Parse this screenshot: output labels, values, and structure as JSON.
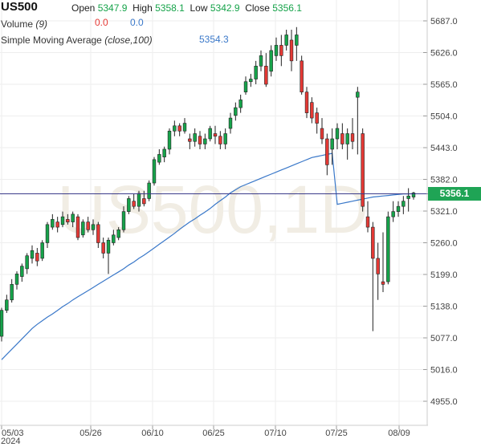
{
  "header": {
    "symbol": "US500",
    "open_label": "Open",
    "open": "5347.9",
    "high_label": "High",
    "high": "5358.1",
    "low_label": "Low",
    "low": "5342.9",
    "close_label": "Close",
    "close": "5356.1",
    "volume_label": "Volume",
    "volume_param": "(9)",
    "volume_val1": "0.0",
    "volume_val2": "0.0",
    "sma_label": "Simple Moving Average",
    "sma_param": "(close,100)",
    "sma_value": "5354.3"
  },
  "watermark": "US500,1D",
  "last_price_tag": "5356.1",
  "colors": {
    "up": "#16a34a",
    "down": "#e53935",
    "sma": "#3a78c9",
    "price_line": "#3b3b8a",
    "tag": "#1fa455"
  },
  "chart_data": {
    "type": "candlestick",
    "y_ticks": [
      "5687.0",
      "5626.0",
      "5565.0",
      "5504.0",
      "5443.0",
      "5382.0",
      "5321.0",
      "5260.0",
      "5199.0",
      "5138.0",
      "5077.0",
      "5016.0",
      "4955.0"
    ],
    "x_ticks": [
      "05/03",
      "05/26",
      "06/10",
      "06/25",
      "07/10",
      "07/25",
      "08/09"
    ],
    "x_sub": "2024",
    "ylim": [
      4935,
      5700
    ],
    "last_price": 5356.1,
    "candles": [
      [
        5080,
        5130,
        5070,
        5135
      ],
      [
        5130,
        5150,
        5125,
        5160
      ],
      [
        5150,
        5180,
        5145,
        5190
      ],
      [
        5180,
        5200,
        5170,
        5205
      ],
      [
        5195,
        5215,
        5185,
        5220
      ],
      [
        5210,
        5235,
        5200,
        5240
      ],
      [
        5230,
        5245,
        5220,
        5255
      ],
      [
        5240,
        5225,
        5215,
        5250
      ],
      [
        5230,
        5260,
        5225,
        5265
      ],
      [
        5260,
        5295,
        5250,
        5300
      ],
      [
        5290,
        5305,
        5285,
        5315
      ],
      [
        5300,
        5290,
        5280,
        5310
      ],
      [
        5295,
        5310,
        5290,
        5320
      ],
      [
        5305,
        5300,
        5295,
        5315
      ],
      [
        5300,
        5315,
        5290,
        5320
      ],
      [
        5310,
        5270,
        5265,
        5315
      ],
      [
        5275,
        5300,
        5270,
        5305
      ],
      [
        5300,
        5285,
        5280,
        5310
      ],
      [
        5285,
        5295,
        5275,
        5305
      ],
      [
        5295,
        5260,
        5250,
        5300
      ],
      [
        5260,
        5240,
        5230,
        5270
      ],
      [
        5240,
        5265,
        5200,
        5270
      ],
      [
        5260,
        5275,
        5255,
        5285
      ],
      [
        5270,
        5285,
        5265,
        5290
      ],
      [
        5285,
        5320,
        5280,
        5330
      ],
      [
        5320,
        5345,
        5315,
        5350
      ],
      [
        5340,
        5330,
        5325,
        5355
      ],
      [
        5330,
        5355,
        5320,
        5360
      ],
      [
        5345,
        5335,
        5330,
        5360
      ],
      [
        5345,
        5375,
        5340,
        5380
      ],
      [
        5375,
        5420,
        5370,
        5425
      ],
      [
        5415,
        5430,
        5410,
        5440
      ],
      [
        5425,
        5440,
        5415,
        5445
      ],
      [
        5440,
        5475,
        5430,
        5480
      ],
      [
        5475,
        5485,
        5465,
        5495
      ],
      [
        5485,
        5475,
        5465,
        5490
      ],
      [
        5475,
        5490,
        5470,
        5500
      ],
      [
        5460,
        5455,
        5440,
        5470
      ],
      [
        5455,
        5470,
        5445,
        5480
      ],
      [
        5465,
        5450,
        5440,
        5475
      ],
      [
        5450,
        5460,
        5440,
        5470
      ],
      [
        5460,
        5480,
        5455,
        5485
      ],
      [
        5470,
        5465,
        5450,
        5485
      ],
      [
        5465,
        5450,
        5440,
        5475
      ],
      [
        5450,
        5470,
        5440,
        5480
      ],
      [
        5480,
        5500,
        5470,
        5510
      ],
      [
        5505,
        5520,
        5495,
        5530
      ],
      [
        5520,
        5535,
        5510,
        5545
      ],
      [
        5550,
        5570,
        5545,
        5580
      ],
      [
        5570,
        5575,
        5560,
        5585
      ],
      [
        5575,
        5600,
        5565,
        5610
      ],
      [
        5600,
        5620,
        5590,
        5630
      ],
      [
        5600,
        5565,
        5560,
        5625
      ],
      [
        5590,
        5630,
        5580,
        5640
      ],
      [
        5620,
        5640,
        5610,
        5655
      ],
      [
        5640,
        5620,
        5600,
        5660
      ],
      [
        5640,
        5660,
        5630,
        5670
      ],
      [
        5650,
        5610,
        5590,
        5670
      ],
      [
        5640,
        5660,
        5610,
        5675
      ],
      [
        5610,
        5550,
        5545,
        5620
      ],
      [
        5550,
        5510,
        5500,
        5560
      ],
      [
        5530,
        5500,
        5490,
        5540
      ],
      [
        5510,
        5490,
        5470,
        5520
      ],
      [
        5480,
        5460,
        5450,
        5500
      ],
      [
        5460,
        5410,
        5390,
        5470
      ],
      [
        5440,
        5460,
        5410,
        5480
      ],
      [
        5460,
        5480,
        5440,
        5490
      ],
      [
        5470,
        5450,
        5440,
        5490
      ],
      [
        5450,
        5470,
        5420,
        5480
      ],
      [
        5470,
        5455,
        5440,
        5500
      ],
      [
        5540,
        5550,
        5430,
        5560
      ],
      [
        5470,
        5330,
        5320,
        5480
      ],
      [
        5310,
        5290,
        5280,
        5340
      ],
      [
        5290,
        5230,
        5090,
        5300
      ],
      [
        5230,
        5200,
        5150,
        5260
      ],
      [
        5185,
        5180,
        5165,
        5280
      ],
      [
        5185,
        5310,
        5180,
        5320
      ],
      [
        5310,
        5320,
        5300,
        5340
      ],
      [
        5320,
        5330,
        5310,
        5340
      ],
      [
        5330,
        5340,
        5315,
        5350
      ],
      [
        5345,
        5350,
        5320,
        5365
      ],
      [
        5348,
        5356,
        5343,
        5358
      ]
    ],
    "sma": [
      5035,
      5045,
      5055,
      5065,
      5075,
      5085,
      5095,
      5103,
      5110,
      5117,
      5123,
      5130,
      5137,
      5143,
      5150,
      5156,
      5162,
      5168,
      5174,
      5180,
      5186,
      5192,
      5198,
      5204,
      5210,
      5217,
      5223,
      5230,
      5236,
      5243,
      5250,
      5257,
      5264,
      5271,
      5278,
      5286,
      5293,
      5300,
      5306,
      5313,
      5319,
      5326,
      5334,
      5341,
      5348,
      5356,
      5362,
      5368,
      5372,
      5376,
      5380,
      5384,
      5388,
      5392,
      5396,
      5400,
      5404,
      5408,
      5412,
      5416,
      5420,
      5424,
      5426,
      5428,
      5430,
      5432,
      5334,
      5336,
      5338,
      5340,
      5342,
      5344,
      5346,
      5348,
      5349,
      5350,
      5351,
      5352,
      5353,
      5354,
      5354,
      5354.3
    ]
  }
}
